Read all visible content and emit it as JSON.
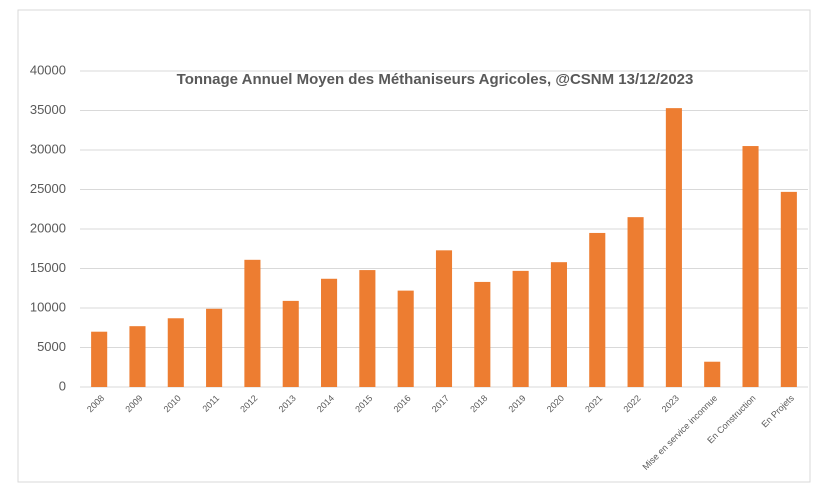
{
  "chart_data": {
    "type": "bar",
    "title": "Tonnage Annuel Moyen des Méthaniseurs Agricoles, @CSNM 13/12/2023",
    "categories": [
      "2008",
      "2009",
      "2010",
      "2011",
      "2012",
      "2013",
      "2014",
      "2015",
      "2016",
      "2017",
      "2018",
      "2019",
      "2020",
      "2021",
      "2022",
      "2023",
      "Mise en service inconnue",
      "En Construction",
      "En Projets"
    ],
    "values": [
      7000,
      7700,
      8700,
      9900,
      16100,
      10900,
      13700,
      14800,
      12200,
      17300,
      13300,
      14700,
      15800,
      19500,
      21500,
      35300,
      3200,
      30500,
      24700
    ],
    "color": "#ed7d31",
    "ylim": [
      0,
      40000
    ],
    "yticks": [
      0,
      5000,
      10000,
      15000,
      20000,
      25000,
      30000,
      35000,
      40000
    ],
    "grid": true
  }
}
